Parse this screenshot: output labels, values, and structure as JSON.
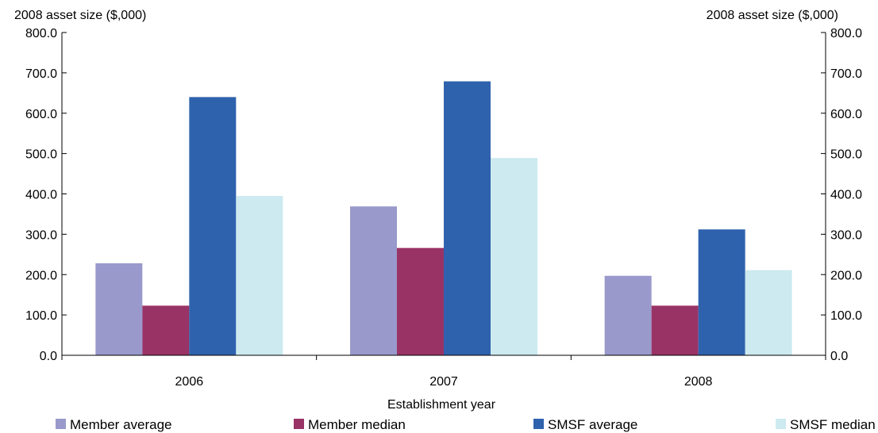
{
  "chart_data": {
    "type": "bar",
    "categories": [
      "2006",
      "2007",
      "2008"
    ],
    "series": [
      {
        "name": "Member average",
        "values": [
          228,
          369,
          197
        ],
        "color": "#9999cc"
      },
      {
        "name": "Member median",
        "values": [
          123,
          266,
          123
        ],
        "color": "#993366"
      },
      {
        "name": "SMSF average",
        "values": [
          640,
          679,
          312
        ],
        "color": "#2f62ad"
      },
      {
        "name": "SMSF median",
        "values": [
          395,
          489,
          211
        ],
        "color": "#cceaf0"
      }
    ],
    "ylabel_left": "2008 asset size ($,000)",
    "ylabel_right": "2008 asset size ($,000)",
    "xlabel": "Establishment year",
    "ylim": [
      0,
      800
    ],
    "yticks": [
      "0.0",
      "100.0",
      "200.0",
      "300.0",
      "400.0",
      "500.0",
      "600.0",
      "700.0",
      "800.0"
    ],
    "grid": false,
    "legend_position": "bottom"
  }
}
